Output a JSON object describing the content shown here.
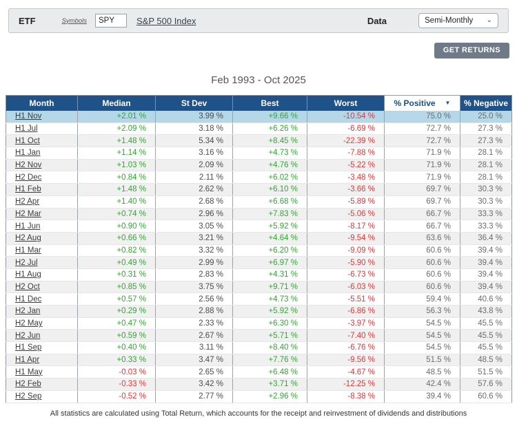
{
  "toolbar": {
    "etf_label": "ETF",
    "symbols_link": "Symbols",
    "symbol_value": "SPY",
    "index_link": "S&P 500 Index",
    "data_label": "Data",
    "data_value": "Semi-Monthly"
  },
  "actions": {
    "get_returns_label": "GET RETURNS"
  },
  "title": "Feb 1993 - Oct 2025",
  "icons": {
    "sort_arrow": "▼",
    "select_chevron": "⌄"
  },
  "colors": {
    "header_bg": "#20528a",
    "highlight_row": "#b4d8e8",
    "stripe_row": "#f0f0f0",
    "positive": "#33a532",
    "negative": "#e53535",
    "button_bg": "#6e7a87"
  },
  "table": {
    "columns": [
      "Month",
      "Median",
      "St Dev",
      "Best",
      "Worst",
      "% Positive",
      "% Negative"
    ],
    "sorted_column": "% Positive",
    "rows": [
      {
        "month": "H1 Nov",
        "median": "+2.01 %",
        "st_dev": "3.99 %",
        "best": "+9.66 %",
        "worst": "-10.54 %",
        "pct_positive": "75.0 %",
        "pct_negative": "25.0 %"
      },
      {
        "month": "H1 Jul",
        "median": "+2.09 %",
        "st_dev": "3.18 %",
        "best": "+6.26 %",
        "worst": "-6.69 %",
        "pct_positive": "72.7 %",
        "pct_negative": "27.3 %"
      },
      {
        "month": "H1 Oct",
        "median": "+1.48 %",
        "st_dev": "5.34 %",
        "best": "+8.45 %",
        "worst": "-22.39 %",
        "pct_positive": "72.7 %",
        "pct_negative": "27.3 %"
      },
      {
        "month": "H1 Jan",
        "median": "+1.14 %",
        "st_dev": "3.16 %",
        "best": "+4.73 %",
        "worst": "-7.88 %",
        "pct_positive": "71.9 %",
        "pct_negative": "28.1 %"
      },
      {
        "month": "H2 Nov",
        "median": "+1.03 %",
        "st_dev": "2.09 %",
        "best": "+4.76 %",
        "worst": "-5.22 %",
        "pct_positive": "71.9 %",
        "pct_negative": "28.1 %"
      },
      {
        "month": "H2 Dec",
        "median": "+0.84 %",
        "st_dev": "2.11 %",
        "best": "+6.02 %",
        "worst": "-3.48 %",
        "pct_positive": "71.9 %",
        "pct_negative": "28.1 %"
      },
      {
        "month": "H1 Feb",
        "median": "+1.48 %",
        "st_dev": "2.62 %",
        "best": "+6.10 %",
        "worst": "-3.66 %",
        "pct_positive": "69.7 %",
        "pct_negative": "30.3 %"
      },
      {
        "month": "H2 Apr",
        "median": "+1.40 %",
        "st_dev": "2.68 %",
        "best": "+6.68 %",
        "worst": "-5.89 %",
        "pct_positive": "69.7 %",
        "pct_negative": "30.3 %"
      },
      {
        "month": "H2 Mar",
        "median": "+0.74 %",
        "st_dev": "2.96 %",
        "best": "+7.83 %",
        "worst": "-5.06 %",
        "pct_positive": "66.7 %",
        "pct_negative": "33.3 %"
      },
      {
        "month": "H1 Jun",
        "median": "+0.90 %",
        "st_dev": "3.05 %",
        "best": "+5.92 %",
        "worst": "-8.17 %",
        "pct_positive": "66.7 %",
        "pct_negative": "33.3 %"
      },
      {
        "month": "H2 Aug",
        "median": "+0.66 %",
        "st_dev": "3.21 %",
        "best": "+4.64 %",
        "worst": "-9.54 %",
        "pct_positive": "63.6 %",
        "pct_negative": "36.4 %"
      },
      {
        "month": "H1 Mar",
        "median": "+0.82 %",
        "st_dev": "3.32 %",
        "best": "+6.20 %",
        "worst": "-9.09 %",
        "pct_positive": "60.6 %",
        "pct_negative": "39.4 %"
      },
      {
        "month": "H2 Jul",
        "median": "+0.49 %",
        "st_dev": "2.99 %",
        "best": "+6.97 %",
        "worst": "-5.90 %",
        "pct_positive": "60.6 %",
        "pct_negative": "39.4 %"
      },
      {
        "month": "H1 Aug",
        "median": "+0.31 %",
        "st_dev": "2.83 %",
        "best": "+4.31 %",
        "worst": "-6.73 %",
        "pct_positive": "60.6 %",
        "pct_negative": "39.4 %"
      },
      {
        "month": "H2 Oct",
        "median": "+0.85 %",
        "st_dev": "3.75 %",
        "best": "+9.71 %",
        "worst": "-6.03 %",
        "pct_positive": "60.6 %",
        "pct_negative": "39.4 %"
      },
      {
        "month": "H1 Dec",
        "median": "+0.57 %",
        "st_dev": "2.56 %",
        "best": "+4.73 %",
        "worst": "-5.51 %",
        "pct_positive": "59.4 %",
        "pct_negative": "40.6 %"
      },
      {
        "month": "H2 Jan",
        "median": "+0.29 %",
        "st_dev": "2.88 %",
        "best": "+5.92 %",
        "worst": "-6.86 %",
        "pct_positive": "56.3 %",
        "pct_negative": "43.8 %"
      },
      {
        "month": "H2 May",
        "median": "+0.47 %",
        "st_dev": "2.33 %",
        "best": "+6.30 %",
        "worst": "-3.97 %",
        "pct_positive": "54.5 %",
        "pct_negative": "45.5 %"
      },
      {
        "month": "H2 Jun",
        "median": "+0.59 %",
        "st_dev": "2.67 %",
        "best": "+5.71 %",
        "worst": "-7.40 %",
        "pct_positive": "54.5 %",
        "pct_negative": "45.5 %"
      },
      {
        "month": "H1 Sep",
        "median": "+0.40 %",
        "st_dev": "3.11 %",
        "best": "+8.40 %",
        "worst": "-6.76 %",
        "pct_positive": "54.5 %",
        "pct_negative": "45.5 %"
      },
      {
        "month": "H1 Apr",
        "median": "+0.33 %",
        "st_dev": "3.47 %",
        "best": "+7.76 %",
        "worst": "-9.56 %",
        "pct_positive": "51.5 %",
        "pct_negative": "48.5 %"
      },
      {
        "month": "H1 May",
        "median": "-0.03 %",
        "st_dev": "2.65 %",
        "best": "+6.48 %",
        "worst": "-4.67 %",
        "pct_positive": "48.5 %",
        "pct_negative": "51.5 %"
      },
      {
        "month": "H2 Feb",
        "median": "-0.33 %",
        "st_dev": "3.42 %",
        "best": "+3.71 %",
        "worst": "-12.25 %",
        "pct_positive": "42.4 %",
        "pct_negative": "57.6 %"
      },
      {
        "month": "H2 Sep",
        "median": "-0.52 %",
        "st_dev": "2.77 %",
        "best": "+2.96 %",
        "worst": "-8.38 %",
        "pct_positive": "39.4 %",
        "pct_negative": "60.6 %"
      }
    ]
  },
  "footnote": "All statistics are calculated using Total Return, which accounts for the receipt and reinvestment of dividends and distributions"
}
